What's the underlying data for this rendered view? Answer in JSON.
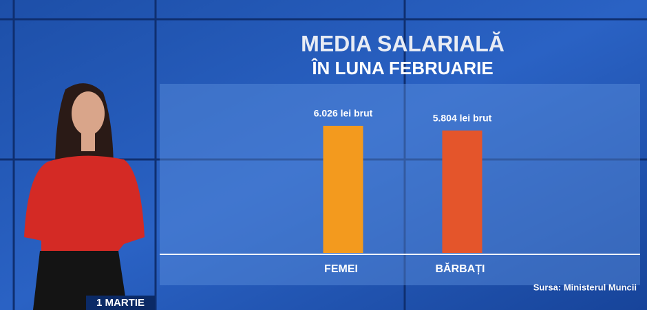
{
  "chart_data": {
    "type": "bar",
    "title": "MEDIA SALARIALĂ",
    "subtitle": "ÎN LUNA FEBRUARIE",
    "categories": [
      "FEMEI",
      "BĂRBAȚI"
    ],
    "values": [
      6026,
      5804
    ],
    "value_labels": [
      "6.026 lei brut",
      "5.804 lei brut"
    ],
    "colors": [
      "#f39a1e",
      "#e4552b"
    ],
    "source": "Sursa: Ministerul Muncii"
  },
  "caption": "1 MARTIE"
}
